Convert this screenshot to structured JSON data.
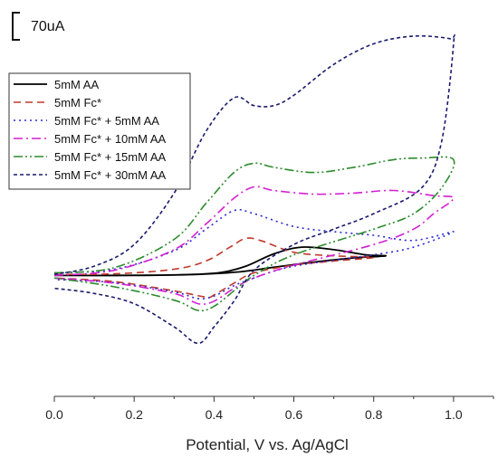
{
  "chart_data": {
    "type": "line",
    "title": "",
    "xlabel": "Potential, V vs. Ag/AgCl",
    "ylabel": "",
    "xlim": [
      0.0,
      1.1
    ],
    "ylim": [
      -235,
      500
    ],
    "x_ticks": [
      "0.0",
      "0.2",
      "0.4",
      "0.6",
      "0.8",
      "1.0"
    ],
    "x_tick_values": [
      0.0,
      0.2,
      0.4,
      0.6,
      0.8,
      1.0
    ],
    "grid": false,
    "legend_position": "top-left",
    "scale_bar": {
      "label": "70uA",
      "value": 70,
      "unit": "uA"
    },
    "series": [
      {
        "name": "5mM AA",
        "color": "#000000",
        "dash": "solid",
        "forward": [
          [
            0.0,
            0
          ],
          [
            0.2,
            0
          ],
          [
            0.35,
            2
          ],
          [
            0.42,
            6
          ],
          [
            0.48,
            18
          ],
          [
            0.55,
            42
          ],
          [
            0.62,
            55
          ],
          [
            0.7,
            50
          ],
          [
            0.78,
            40
          ],
          [
            0.83,
            38
          ]
        ],
        "reverse": [
          [
            0.83,
            38
          ],
          [
            0.75,
            34
          ],
          [
            0.65,
            26
          ],
          [
            0.55,
            16
          ],
          [
            0.45,
            6
          ],
          [
            0.3,
            1
          ],
          [
            0.0,
            0
          ]
        ]
      },
      {
        "name": "5mM Fc*",
        "color": "#c0392b",
        "dash": "dash",
        "forward": [
          [
            0.0,
            2
          ],
          [
            0.15,
            3
          ],
          [
            0.3,
            12
          ],
          [
            0.38,
            28
          ],
          [
            0.44,
            55
          ],
          [
            0.48,
            72
          ],
          [
            0.52,
            67
          ],
          [
            0.6,
            45
          ],
          [
            0.7,
            38
          ],
          [
            0.8,
            35
          ]
        ],
        "reverse": [
          [
            0.8,
            35
          ],
          [
            0.7,
            28
          ],
          [
            0.6,
            20
          ],
          [
            0.5,
            5
          ],
          [
            0.45,
            -15
          ],
          [
            0.4,
            -38
          ],
          [
            0.38,
            -42
          ],
          [
            0.3,
            -30
          ],
          [
            0.15,
            -12
          ],
          [
            0.0,
            -5
          ]
        ]
      },
      {
        "name": "5mM Fc* + 5mM AA",
        "color": "#2a2ad0",
        "dash": "dot",
        "forward": [
          [
            0.0,
            5
          ],
          [
            0.15,
            12
          ],
          [
            0.3,
            48
          ],
          [
            0.38,
            90
          ],
          [
            0.45,
            126
          ],
          [
            0.5,
            120
          ],
          [
            0.6,
            95
          ],
          [
            0.7,
            85
          ],
          [
            0.8,
            78
          ],
          [
            0.9,
            68
          ],
          [
            1.0,
            85
          ]
        ],
        "reverse": [
          [
            1.0,
            85
          ],
          [
            0.9,
            55
          ],
          [
            0.8,
            40
          ],
          [
            0.6,
            18
          ],
          [
            0.5,
            -5
          ],
          [
            0.45,
            -20
          ],
          [
            0.4,
            -40
          ],
          [
            0.36,
            -45
          ],
          [
            0.3,
            -32
          ],
          [
            0.15,
            -14
          ],
          [
            0.0,
            -8
          ]
        ]
      },
      {
        "name": "5mM Fc* + 10mM AA",
        "color": "#d41fd4",
        "dash": "dashdot",
        "forward": [
          [
            0.0,
            0
          ],
          [
            0.15,
            10
          ],
          [
            0.3,
            50
          ],
          [
            0.38,
            100
          ],
          [
            0.45,
            150
          ],
          [
            0.5,
            172
          ],
          [
            0.55,
            165
          ],
          [
            0.65,
            158
          ],
          [
            0.75,
            160
          ],
          [
            0.85,
            165
          ],
          [
            0.95,
            155
          ],
          [
            1.0,
            150
          ]
        ],
        "reverse": [
          [
            1.0,
            150
          ],
          [
            0.95,
            120
          ],
          [
            0.9,
            90
          ],
          [
            0.8,
            60
          ],
          [
            0.6,
            20
          ],
          [
            0.5,
            -5
          ],
          [
            0.45,
            -25
          ],
          [
            0.4,
            -50
          ],
          [
            0.36,
            -55
          ],
          [
            0.3,
            -35
          ],
          [
            0.15,
            -15
          ],
          [
            0.0,
            -5
          ]
        ]
      },
      {
        "name": "5mM Fc* + 15mM AA",
        "color": "#2e8b2e",
        "dash": "dashdotdot",
        "forward": [
          [
            0.0,
            5
          ],
          [
            0.15,
            15
          ],
          [
            0.3,
            70
          ],
          [
            0.38,
            140
          ],
          [
            0.45,
            200
          ],
          [
            0.5,
            218
          ],
          [
            0.55,
            210
          ],
          [
            0.65,
            200
          ],
          [
            0.75,
            210
          ],
          [
            0.85,
            225
          ],
          [
            0.92,
            228
          ],
          [
            1.0,
            225
          ]
        ],
        "reverse": [
          [
            1.0,
            225
          ],
          [
            0.97,
            170
          ],
          [
            0.9,
            120
          ],
          [
            0.8,
            90
          ],
          [
            0.6,
            40
          ],
          [
            0.5,
            0
          ],
          [
            0.45,
            -30
          ],
          [
            0.4,
            -60
          ],
          [
            0.36,
            -68
          ],
          [
            0.3,
            -48
          ],
          [
            0.15,
            -22
          ],
          [
            0.0,
            -5
          ]
        ]
      },
      {
        "name": "5mM Fc* + 30mM AA",
        "color": "#1a1a6e",
        "dash": "shortdash",
        "forward": [
          [
            0.0,
            2
          ],
          [
            0.1,
            18
          ],
          [
            0.2,
            60
          ],
          [
            0.3,
            160
          ],
          [
            0.38,
            280
          ],
          [
            0.45,
            345
          ],
          [
            0.5,
            330
          ],
          [
            0.55,
            330
          ],
          [
            0.6,
            350
          ],
          [
            0.7,
            410
          ],
          [
            0.8,
            450
          ],
          [
            0.9,
            465
          ],
          [
            0.99,
            460
          ],
          [
            1.0,
            450
          ]
        ],
        "reverse": [
          [
            1.0,
            450
          ],
          [
            0.97,
            260
          ],
          [
            0.92,
            170
          ],
          [
            0.8,
            120
          ],
          [
            0.7,
            90
          ],
          [
            0.6,
            60
          ],
          [
            0.5,
            10
          ],
          [
            0.45,
            -50
          ],
          [
            0.4,
            -100
          ],
          [
            0.36,
            -132
          ],
          [
            0.3,
            -100
          ],
          [
            0.2,
            -55
          ],
          [
            0.1,
            -35
          ],
          [
            0.0,
            -25
          ]
        ]
      }
    ]
  }
}
